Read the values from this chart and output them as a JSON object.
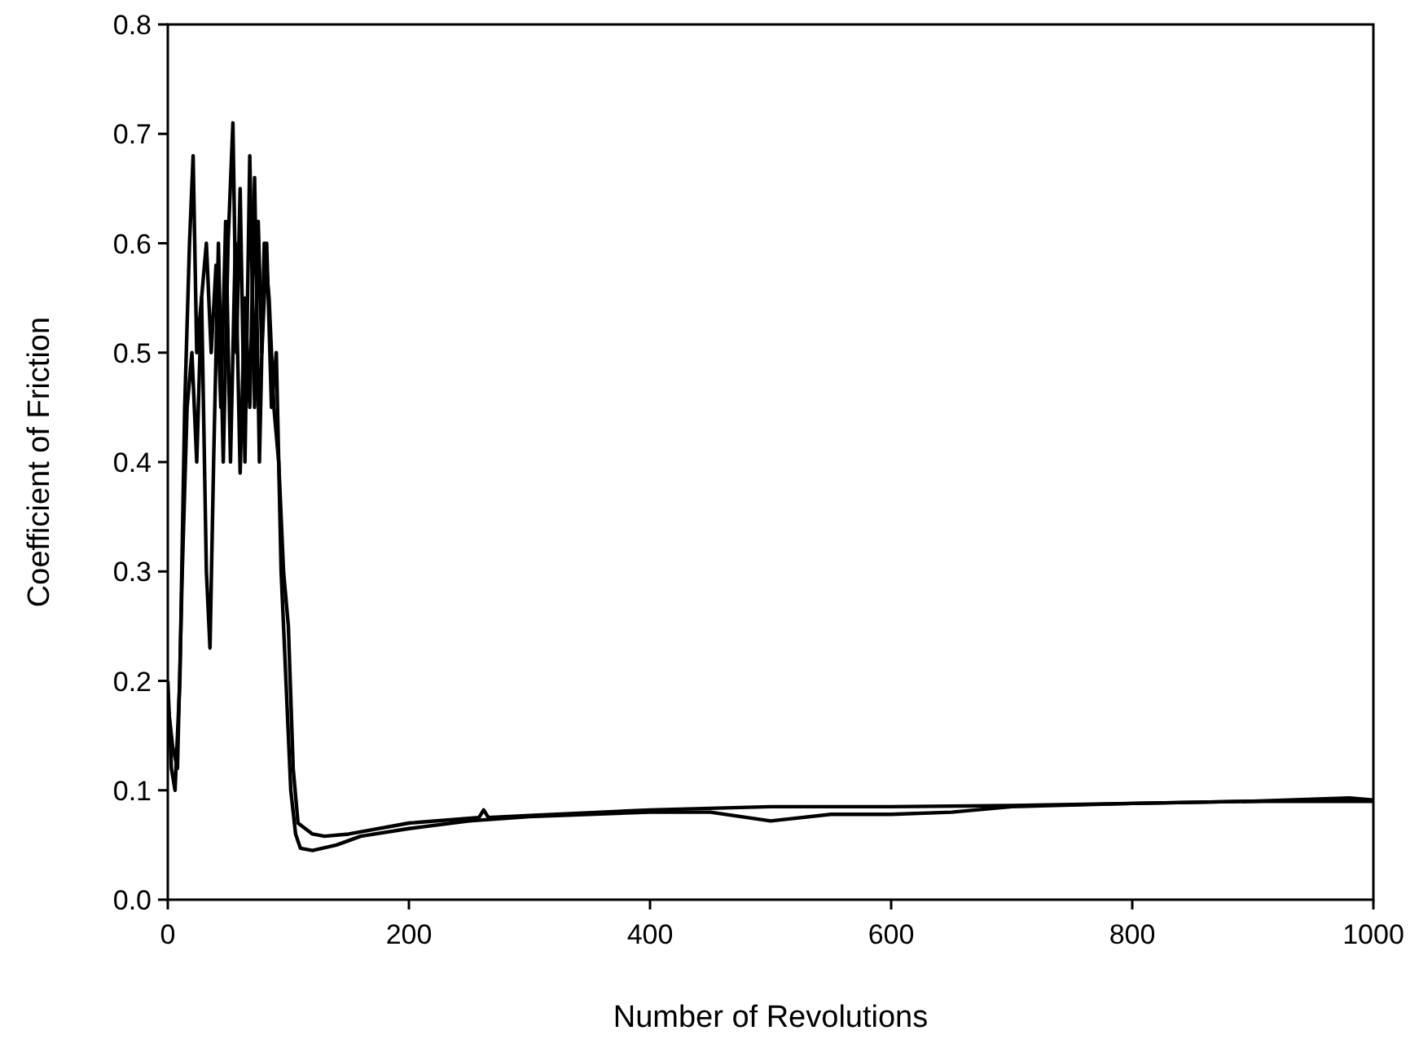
{
  "chart_data": {
    "type": "line",
    "xlabel": "Number of Revolutions",
    "ylabel": "Coefficient of Friction",
    "xlim": [
      0,
      1000
    ],
    "ylim": [
      0,
      0.8
    ],
    "xticks": [
      0,
      200,
      400,
      600,
      800,
      1000
    ],
    "yticks": [
      {
        "value": 0,
        "label": "0.0"
      },
      0.1,
      0.2,
      0.3,
      0.4,
      0.5,
      0.6,
      0.7,
      0.8
    ],
    "marker": "none",
    "line_style": "solid",
    "series": [
      {
        "color": "#000000",
        "x": [
          0,
          3,
          6,
          10,
          14,
          18,
          21,
          24,
          28,
          32,
          35,
          38,
          42,
          46,
          50,
          54,
          57,
          60,
          64,
          68,
          72,
          75,
          78,
          82,
          86,
          90,
          94,
          98,
          102,
          106,
          110,
          120,
          140,
          160,
          200,
          250,
          300,
          400,
          450,
          500,
          550,
          600,
          650,
          700,
          800,
          900,
          1000
        ],
        "values": [
          0.2,
          0.12,
          0.1,
          0.2,
          0.45,
          0.6,
          0.68,
          0.5,
          0.55,
          0.3,
          0.23,
          0.4,
          0.6,
          0.4,
          0.6,
          0.71,
          0.5,
          0.65,
          0.4,
          0.68,
          0.45,
          0.62,
          0.5,
          0.6,
          0.45,
          0.5,
          0.3,
          0.2,
          0.1,
          0.06,
          0.047,
          0.045,
          0.05,
          0.058,
          0.065,
          0.072,
          0.076,
          0.08,
          0.08,
          0.072,
          0.078,
          0.078,
          0.08,
          0.085,
          0.088,
          0.09,
          0.09
        ]
      },
      {
        "color": "#000000",
        "x": [
          0,
          4,
          8,
          12,
          16,
          20,
          24,
          28,
          32,
          36,
          40,
          44,
          48,
          52,
          56,
          60,
          64,
          68,
          72,
          76,
          80,
          84,
          88,
          92,
          96,
          100,
          104,
          108,
          114,
          120,
          130,
          150,
          200,
          258,
          262,
          266,
          300,
          400,
          500,
          600,
          700,
          800,
          900,
          980,
          1000
        ],
        "values": [
          0.18,
          0.14,
          0.12,
          0.3,
          0.45,
          0.5,
          0.4,
          0.55,
          0.6,
          0.5,
          0.58,
          0.45,
          0.62,
          0.4,
          0.6,
          0.39,
          0.55,
          0.45,
          0.66,
          0.4,
          0.6,
          0.55,
          0.45,
          0.4,
          0.3,
          0.25,
          0.12,
          0.07,
          0.065,
          0.06,
          0.058,
          0.06,
          0.07,
          0.075,
          0.082,
          0.075,
          0.077,
          0.082,
          0.085,
          0.085,
          0.086,
          0.088,
          0.09,
          0.093,
          0.091
        ]
      }
    ]
  }
}
